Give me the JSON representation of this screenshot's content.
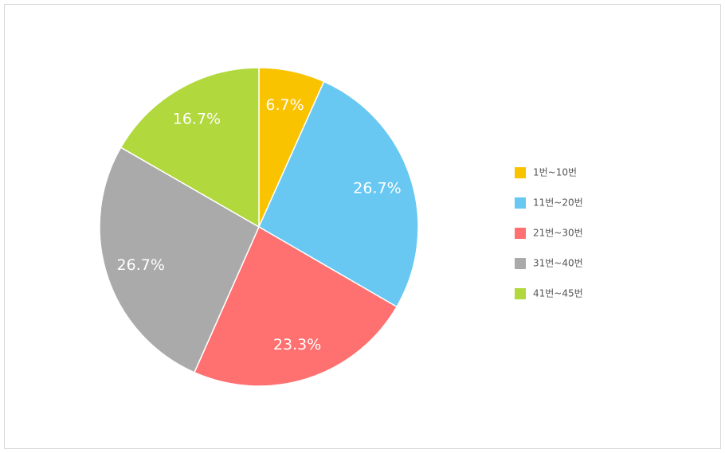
{
  "chart_data": {
    "type": "pie",
    "categories": [
      "1번~10번",
      "11번~20번",
      "21번~30번",
      "31번~40번",
      "41번~45번"
    ],
    "values": [
      6.7,
      26.7,
      23.3,
      26.7,
      16.7
    ],
    "value_labels": [
      "6.7%",
      "26.7%",
      "23.3%",
      "26.7%",
      "16.7%"
    ],
    "colors": [
      "#f9c300",
      "#68c8f2",
      "#ff7070",
      "#aaaaaa",
      "#b1d83d"
    ],
    "legend": "right"
  }
}
